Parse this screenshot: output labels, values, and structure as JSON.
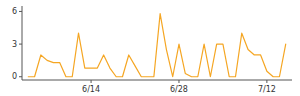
{
  "chart_data": {
    "type": "line",
    "x": [
      0,
      1,
      2,
      3,
      4,
      5,
      6,
      7,
      8,
      9,
      10,
      11,
      12,
      13,
      14,
      15,
      16,
      17,
      18,
      19,
      20,
      21,
      22,
      23,
      24,
      25,
      26,
      27,
      28,
      29,
      30,
      31,
      32,
      33,
      34,
      35,
      36,
      37,
      38,
      39,
      40,
      41
    ],
    "values": [
      0,
      0,
      2,
      1.5,
      1.3,
      1.3,
      0,
      0,
      4,
      0.8,
      0.8,
      0.8,
      2,
      0.8,
      0,
      0,
      2,
      1,
      0,
      0,
      0,
      5.8,
      2.5,
      0,
      3,
      0.3,
      0,
      0,
      3,
      0,
      3,
      3,
      0,
      0,
      4,
      2.5,
      2,
      2,
      0.5,
      0,
      0,
      3
    ],
    "color": "#f5a623",
    "xlim": [
      -1,
      42
    ],
    "xticks": [
      {
        "value": 10,
        "label": "6/14"
      },
      {
        "value": 24,
        "label": "6/28"
      },
      {
        "value": 38,
        "label": "7/12"
      }
    ],
    "ylim": [
      -0.3,
      6.5
    ],
    "yticks": [
      0,
      3,
      6
    ]
  }
}
